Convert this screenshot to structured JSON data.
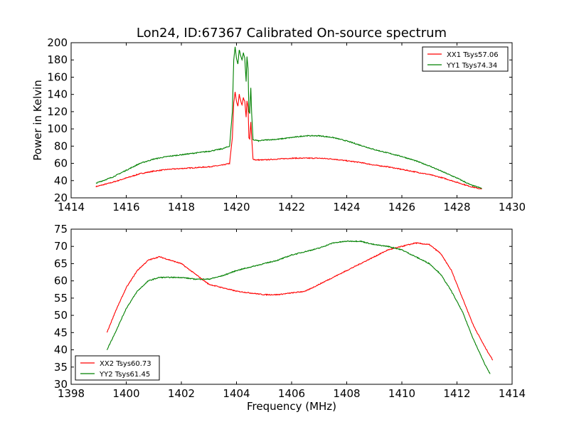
{
  "figure_title": "Lon24, ID:67367 Calibrated On-source spectrum",
  "colors": {
    "red": "#ff0000",
    "green": "#008000"
  },
  "chart_data": [
    {
      "type": "line",
      "title": "Lon24, ID:67367 Calibrated On-source spectrum",
      "xlabel": "",
      "ylabel": "Power in Kelvin",
      "xlim": [
        1414,
        1430
      ],
      "ylim": [
        20,
        200
      ],
      "xticks": [
        1414,
        1416,
        1418,
        1420,
        1422,
        1424,
        1426,
        1428,
        1430
      ],
      "yticks": [
        20,
        40,
        60,
        80,
        100,
        120,
        140,
        160,
        180,
        200
      ],
      "grid": false,
      "legend_position": "top-right",
      "series": [
        {
          "name": "XX1 Tsys57.06",
          "color": "#ff0000",
          "x": [
            1414.9,
            1415.5,
            1416,
            1416.5,
            1417,
            1417.5,
            1418,
            1418.5,
            1419,
            1419.5,
            1419.75,
            1419.85,
            1419.9,
            1419.95,
            1420.0,
            1420.05,
            1420.1,
            1420.15,
            1420.2,
            1420.25,
            1420.3,
            1420.35,
            1420.38,
            1420.42,
            1420.45,
            1420.48,
            1420.52,
            1420.55,
            1420.6,
            1420.7,
            1420.8,
            1421,
            1421.5,
            1422,
            1422.5,
            1423,
            1423.5,
            1424,
            1424.5,
            1425,
            1425.5,
            1426,
            1426.5,
            1427,
            1427.5,
            1428,
            1428.5,
            1428.9
          ],
          "y": [
            33,
            38,
            43,
            48,
            51,
            53,
            54,
            55,
            56,
            58,
            60,
            90,
            130,
            143,
            132,
            126,
            140,
            133,
            128,
            136,
            132,
            114,
            133,
            125,
            90,
            88,
            108,
            90,
            65,
            64,
            64,
            64,
            65,
            66,
            66,
            66,
            65,
            63,
            61,
            58,
            56,
            53,
            50,
            47,
            43,
            38,
            33,
            30
          ]
        },
        {
          "name": "YY1 Tsys74.34",
          "color": "#008000",
          "x": [
            1414.9,
            1415.5,
            1416,
            1416.5,
            1417,
            1417.5,
            1418,
            1418.5,
            1419,
            1419.5,
            1419.75,
            1419.85,
            1419.9,
            1419.95,
            1420.0,
            1420.05,
            1420.1,
            1420.15,
            1420.2,
            1420.25,
            1420.3,
            1420.35,
            1420.38,
            1420.42,
            1420.45,
            1420.48,
            1420.52,
            1420.55,
            1420.6,
            1420.7,
            1420.8,
            1421,
            1421.5,
            1422,
            1422.5,
            1423,
            1423.5,
            1424,
            1424.5,
            1425,
            1425.5,
            1426,
            1426.5,
            1427,
            1427.5,
            1428,
            1428.5,
            1428.9
          ],
          "y": [
            37,
            44,
            52,
            60,
            65,
            68,
            70,
            72,
            74,
            77,
            80,
            120,
            180,
            195,
            182,
            175,
            192,
            185,
            180,
            188,
            182,
            155,
            184,
            170,
            120,
            118,
            148,
            118,
            87,
            87,
            86,
            87,
            88,
            90,
            92,
            92,
            90,
            86,
            81,
            76,
            72,
            68,
            63,
            57,
            50,
            43,
            35,
            31
          ]
        }
      ]
    },
    {
      "type": "line",
      "title": "",
      "xlabel": "Frequency (MHz)",
      "ylabel": "",
      "xlim": [
        1398,
        1414
      ],
      "ylim": [
        30,
        75
      ],
      "xticks": [
        1398,
        1400,
        1402,
        1404,
        1406,
        1408,
        1410,
        1412,
        1414
      ],
      "yticks": [
        30,
        35,
        40,
        45,
        50,
        55,
        60,
        65,
        70,
        75
      ],
      "grid": false,
      "legend_position": "bottom-left",
      "series": [
        {
          "name": "XX2 Tsys60.73",
          "color": "#ff0000",
          "x": [
            1399.3,
            1399.6,
            1400,
            1400.4,
            1400.8,
            1401.2,
            1401.6,
            1402,
            1402.5,
            1403,
            1403.5,
            1404,
            1404.5,
            1405,
            1405.5,
            1406,
            1406.5,
            1407,
            1407.5,
            1408,
            1408.5,
            1409,
            1409.5,
            1410,
            1410.5,
            1411,
            1411.4,
            1411.8,
            1412.2,
            1412.6,
            1413,
            1413.3
          ],
          "y": [
            45,
            51,
            58,
            63,
            66,
            67,
            66,
            65,
            62,
            59,
            58,
            57,
            56.5,
            56,
            56,
            56.5,
            57,
            59,
            61,
            63,
            65,
            67,
            69,
            70,
            71,
            70.5,
            68,
            63,
            55,
            47,
            41,
            37
          ]
        },
        {
          "name": "YY2 Tsys61.45",
          "color": "#008000",
          "x": [
            1399.3,
            1399.6,
            1400,
            1400.4,
            1400.8,
            1401.2,
            1401.6,
            1402,
            1402.5,
            1403,
            1403.5,
            1404,
            1404.5,
            1405,
            1405.5,
            1406,
            1406.5,
            1407,
            1407.5,
            1408,
            1408.5,
            1409,
            1409.5,
            1410,
            1410.5,
            1411,
            1411.4,
            1411.8,
            1412.2,
            1412.6,
            1413,
            1413.2
          ],
          "y": [
            40,
            45,
            52,
            57,
            60,
            61,
            61,
            61,
            60.5,
            60.5,
            61.5,
            63,
            64,
            65,
            66,
            67.5,
            68.5,
            69.5,
            71,
            71.5,
            71.5,
            70.5,
            70,
            69,
            67,
            65,
            62,
            57,
            51,
            43,
            36,
            33
          ]
        }
      ]
    }
  ]
}
